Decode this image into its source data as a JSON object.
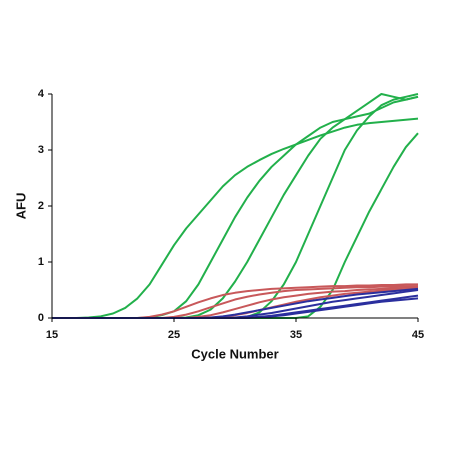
{
  "chart_data": {
    "type": "line",
    "x_label": "Cycle Number",
    "y_label": "AFU",
    "x": [
      15,
      16,
      17,
      18,
      19,
      20,
      21,
      22,
      23,
      24,
      25,
      26,
      27,
      28,
      29,
      30,
      31,
      32,
      33,
      34,
      35,
      36,
      37,
      38,
      39,
      40,
      41,
      42,
      43,
      44,
      45
    ],
    "xlim": [
      15,
      45
    ],
    "xticks": [
      15,
      25,
      35,
      45
    ],
    "ylim": [
      0,
      4
    ],
    "yticks": [
      0,
      1,
      2,
      3,
      4
    ],
    "grid": false,
    "series": [
      {
        "color": "#22b04b",
        "values": [
          0,
          0,
          0,
          0.01,
          0.03,
          0.08,
          0.18,
          0.35,
          0.6,
          0.95,
          1.3,
          1.6,
          1.85,
          2.1,
          2.35,
          2.55,
          2.7,
          2.82,
          2.93,
          3.02,
          3.1,
          3.18,
          3.26,
          3.33,
          3.4,
          3.45,
          3.48,
          3.5,
          3.52,
          3.54,
          3.56
        ]
      },
      {
        "color": "#22b04b",
        "values": [
          0,
          0,
          0,
          0,
          0,
          0,
          0,
          0,
          0.01,
          0.05,
          0.12,
          0.3,
          0.6,
          1.0,
          1.4,
          1.8,
          2.15,
          2.45,
          2.7,
          2.9,
          3.1,
          3.25,
          3.4,
          3.5,
          3.55,
          3.6,
          3.65,
          3.75,
          3.85,
          3.9,
          3.95
        ]
      },
      {
        "color": "#22b04b",
        "values": [
          0,
          0,
          0,
          0,
          0,
          0,
          0,
          0,
          0,
          0,
          0,
          0.01,
          0.05,
          0.15,
          0.35,
          0.65,
          1.0,
          1.4,
          1.8,
          2.2,
          2.55,
          2.9,
          3.2,
          3.4,
          3.55,
          3.7,
          3.85,
          4.0,
          3.95,
          3.9,
          3.95
        ]
      },
      {
        "color": "#22b04b",
        "values": [
          0,
          0,
          0,
          0,
          0,
          0,
          0,
          0,
          0,
          0,
          0,
          0,
          0,
          0,
          0,
          0,
          0.02,
          0.1,
          0.3,
          0.6,
          1.0,
          1.5,
          2.0,
          2.5,
          3.0,
          3.35,
          3.6,
          3.8,
          3.9,
          3.95,
          4.0
        ]
      },
      {
        "color": "#22b04b",
        "values": [
          0,
          0,
          0,
          0,
          0,
          0,
          0,
          0,
          0,
          0,
          0,
          0,
          0,
          0,
          0,
          0,
          0,
          0,
          0,
          0,
          0,
          0.03,
          0.2,
          0.5,
          1.0,
          1.45,
          1.9,
          2.3,
          2.7,
          3.05,
          3.3
        ]
      },
      {
        "color": "#c8585a",
        "values": [
          0,
          0,
          0,
          0,
          0,
          0,
          0,
          0,
          0.02,
          0.06,
          0.12,
          0.2,
          0.28,
          0.35,
          0.41,
          0.45,
          0.48,
          0.5,
          0.52,
          0.53,
          0.54,
          0.55,
          0.56,
          0.57,
          0.57,
          0.58,
          0.58,
          0.59,
          0.59,
          0.6,
          0.6
        ]
      },
      {
        "color": "#c8585a",
        "values": [
          0,
          0,
          0,
          0,
          0,
          0,
          0,
          0,
          0,
          0,
          0.02,
          0.06,
          0.12,
          0.19,
          0.26,
          0.33,
          0.38,
          0.42,
          0.45,
          0.48,
          0.5,
          0.51,
          0.52,
          0.53,
          0.54,
          0.55,
          0.55,
          0.56,
          0.56,
          0.57,
          0.57
        ]
      },
      {
        "color": "#c8585a",
        "values": [
          0,
          0,
          0,
          0,
          0,
          0,
          0,
          0,
          0,
          0,
          0,
          0,
          0.02,
          0.05,
          0.1,
          0.16,
          0.22,
          0.28,
          0.33,
          0.37,
          0.4,
          0.43,
          0.45,
          0.47,
          0.48,
          0.5,
          0.51,
          0.52,
          0.53,
          0.54,
          0.55
        ]
      },
      {
        "color": "#c8585a",
        "values": [
          0,
          0,
          0,
          0,
          0,
          0,
          0,
          0,
          0,
          0,
          0,
          0,
          0,
          0,
          0.02,
          0.05,
          0.09,
          0.14,
          0.19,
          0.24,
          0.29,
          0.33,
          0.37,
          0.4,
          0.43,
          0.45,
          0.47,
          0.49,
          0.5,
          0.51,
          0.52
        ]
      },
      {
        "color": "#2b2f9e",
        "values": [
          0,
          0,
          0,
          0,
          0,
          0,
          0,
          0,
          0,
          0,
          0,
          0,
          0,
          0.01,
          0.03,
          0.06,
          0.1,
          0.14,
          0.18,
          0.22,
          0.26,
          0.3,
          0.33,
          0.36,
          0.39,
          0.42,
          0.44,
          0.46,
          0.48,
          0.5,
          0.52
        ]
      },
      {
        "color": "#2b2f9e",
        "values": [
          0,
          0,
          0,
          0,
          0,
          0,
          0,
          0,
          0,
          0,
          0,
          0,
          0,
          0,
          0,
          0.01,
          0.03,
          0.06,
          0.09,
          0.13,
          0.17,
          0.21,
          0.25,
          0.29,
          0.32,
          0.35,
          0.38,
          0.41,
          0.44,
          0.47,
          0.5
        ]
      },
      {
        "color": "#2b2f9e",
        "values": [
          0,
          0,
          0,
          0,
          0,
          0,
          0,
          0,
          0,
          0,
          0,
          0,
          0,
          0,
          0,
          0,
          0,
          0.01,
          0.03,
          0.05,
          0.08,
          0.11,
          0.14,
          0.17,
          0.2,
          0.23,
          0.26,
          0.29,
          0.31,
          0.33,
          0.35
        ]
      },
      {
        "color": "#2b2f9e",
        "values": [
          0,
          0,
          0,
          0,
          0,
          0,
          0,
          0,
          0,
          0,
          0,
          0,
          0,
          0,
          0,
          0,
          0.01,
          0.02,
          0.04,
          0.07,
          0.1,
          0.13,
          0.16,
          0.19,
          0.22,
          0.25,
          0.28,
          0.31,
          0.34,
          0.37,
          0.4
        ]
      }
    ]
  }
}
